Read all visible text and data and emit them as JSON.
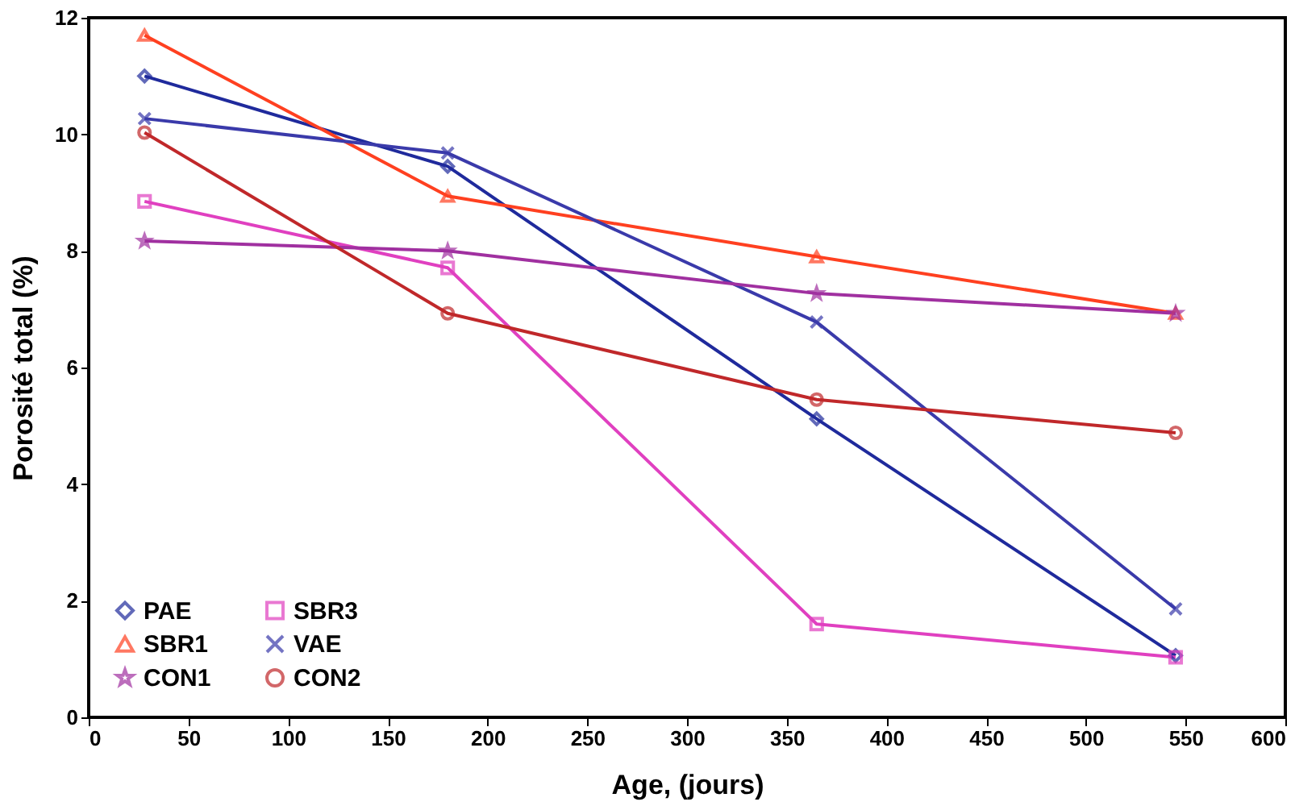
{
  "chart_data": {
    "type": "line",
    "xlabel": "Age, (jours)",
    "ylabel": "Porosité total (%)",
    "x": [
      28,
      180,
      365,
      545
    ],
    "xlim": [
      0,
      600
    ],
    "xticks": [
      0,
      50,
      100,
      150,
      200,
      250,
      300,
      350,
      400,
      450,
      500,
      550,
      600
    ],
    "ylim": [
      0,
      12
    ],
    "yticks": [
      0,
      2,
      4,
      6,
      8,
      10,
      12
    ],
    "grid": false,
    "legend": "bottom left",
    "line_style": "solid",
    "series": [
      {
        "name": "PAE",
        "color": "#1f2a9c",
        "marker": "diamond",
        "values": [
          11.0,
          9.45,
          5.12,
          1.06
        ]
      },
      {
        "name": "SBR3",
        "color": "#e040c0",
        "marker": "square",
        "values": [
          8.85,
          7.71,
          1.6,
          1.03
        ]
      },
      {
        "name": "SBR1",
        "color": "#ff4020",
        "marker": "triangle",
        "values": [
          11.7,
          8.94,
          7.9,
          6.93
        ]
      },
      {
        "name": "VAE",
        "color": "#3a3aaa",
        "marker": "cross",
        "values": [
          10.27,
          9.68,
          6.78,
          1.86
        ]
      },
      {
        "name": "CON1",
        "color": "#a030a0",
        "marker": "star",
        "values": [
          8.17,
          8.0,
          7.27,
          6.93
        ]
      },
      {
        "name": "CON2",
        "color": "#c0282a",
        "marker": "circle",
        "values": [
          10.03,
          6.93,
          5.45,
          4.88
        ]
      }
    ]
  }
}
